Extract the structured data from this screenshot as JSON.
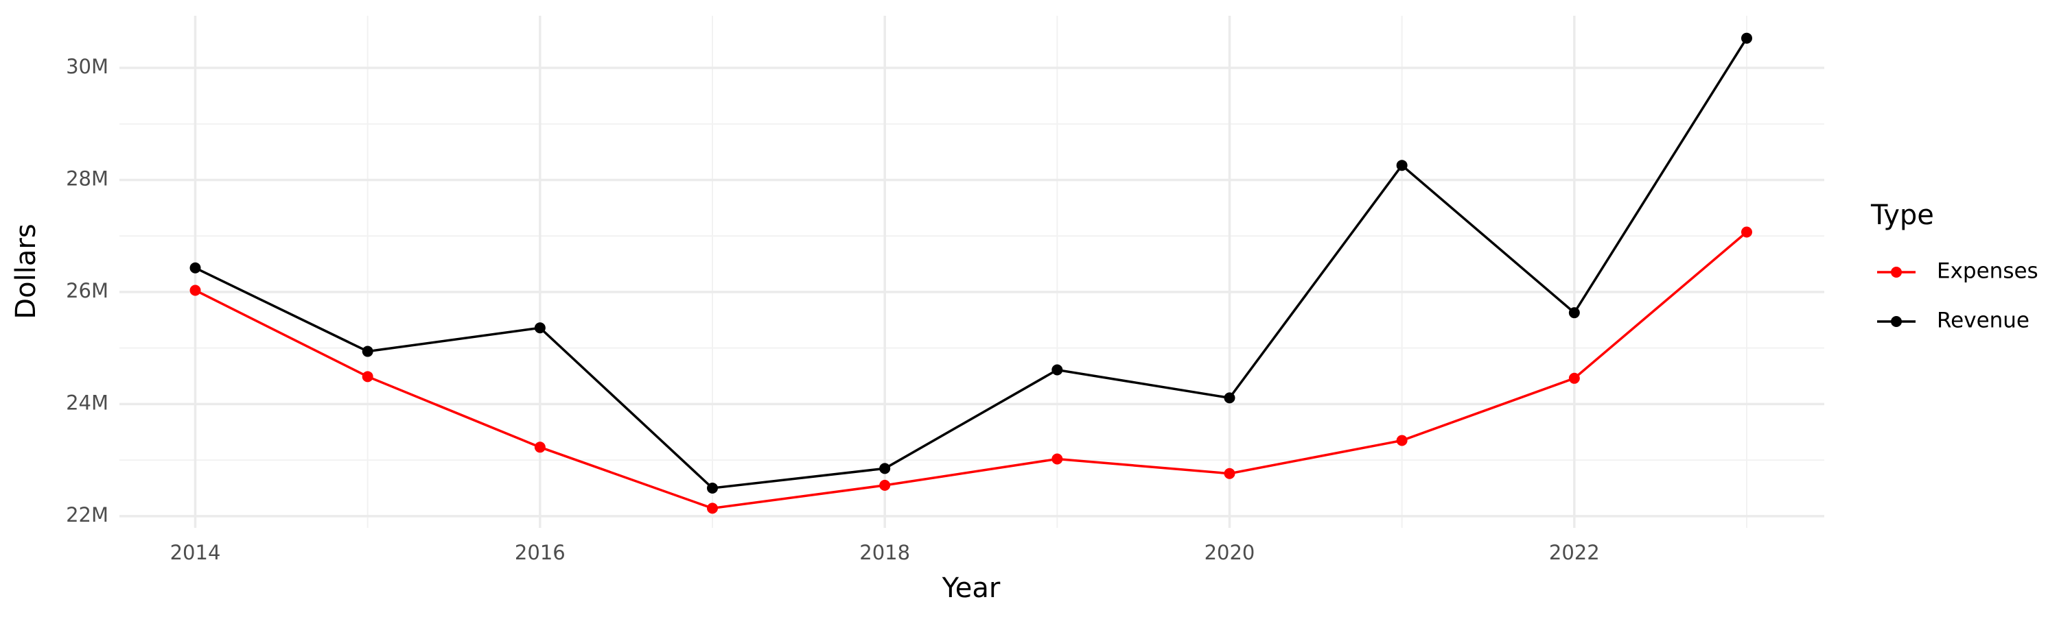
{
  "chart_data": {
    "type": "line",
    "x_label": "Year",
    "y_label": "Dollars",
    "legend_title": "Type",
    "legend_position": "right",
    "x": [
      2014,
      2015,
      2016,
      2017,
      2018,
      2019,
      2020,
      2021,
      2022,
      2023
    ],
    "series": [
      {
        "name": "Expenses",
        "color": "#ff0000",
        "values": [
          26030000,
          24490000,
          23230000,
          22140000,
          22550000,
          23020000,
          22760000,
          23350000,
          24460000,
          27070000
        ]
      },
      {
        "name": "Revenue",
        "color": "#000000",
        "values": [
          26430000,
          24940000,
          25360000,
          22500000,
          22850000,
          24610000,
          24110000,
          28260000,
          25630000,
          30530000
        ]
      }
    ],
    "xlim": [
      2013.56,
      2023.45
    ],
    "xticks": [
      2014,
      2016,
      2018,
      2020,
      2022
    ],
    "ylim": [
      21790000,
      30930000
    ],
    "yticks": [
      {
        "value": 22000000,
        "label": "22M"
      },
      {
        "value": 24000000,
        "label": "24M"
      },
      {
        "value": 26000000,
        "label": "26M"
      },
      {
        "value": 28000000,
        "label": "28M"
      },
      {
        "value": 30000000,
        "label": "30M"
      }
    ],
    "grid": true
  }
}
